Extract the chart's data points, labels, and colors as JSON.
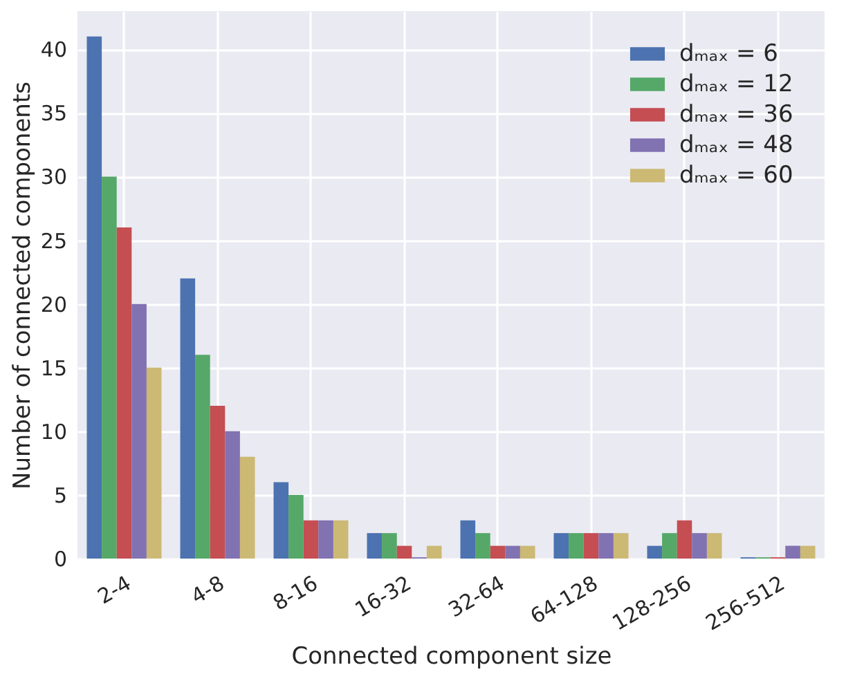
{
  "chart_data": {
    "type": "bar",
    "xlabel": "Connected component size",
    "ylabel": "Number of connected components",
    "categories": [
      "2-4",
      "4-8",
      "8-16",
      "16-32",
      "32-64",
      "64-128",
      "128-256",
      "256-512"
    ],
    "series": [
      {
        "name": "dₘₐₓ = 6",
        "color": "#4c72b0",
        "values": [
          41,
          22,
          6,
          2,
          3,
          2,
          1,
          0.1
        ]
      },
      {
        "name": "dₘₐₓ = 12",
        "color": "#55a868",
        "values": [
          30,
          16,
          5,
          2,
          2,
          2,
          2,
          0.1
        ]
      },
      {
        "name": "dₘₐₓ = 36",
        "color": "#c44e52",
        "values": [
          26,
          12,
          3,
          1,
          1,
          2,
          3,
          0.1
        ]
      },
      {
        "name": "dₘₐₓ = 48",
        "color": "#8172b2",
        "values": [
          20,
          10,
          3,
          0.1,
          1,
          2,
          2,
          1
        ]
      },
      {
        "name": "dₘₐₓ = 60",
        "color": "#ccb974",
        "values": [
          15,
          8,
          3,
          1,
          1,
          2,
          2,
          1
        ]
      }
    ],
    "ylim": [
      0,
      43
    ],
    "yticks": [
      0,
      5,
      10,
      15,
      20,
      25,
      30,
      35,
      40
    ],
    "grid": true,
    "legend": "top right"
  }
}
